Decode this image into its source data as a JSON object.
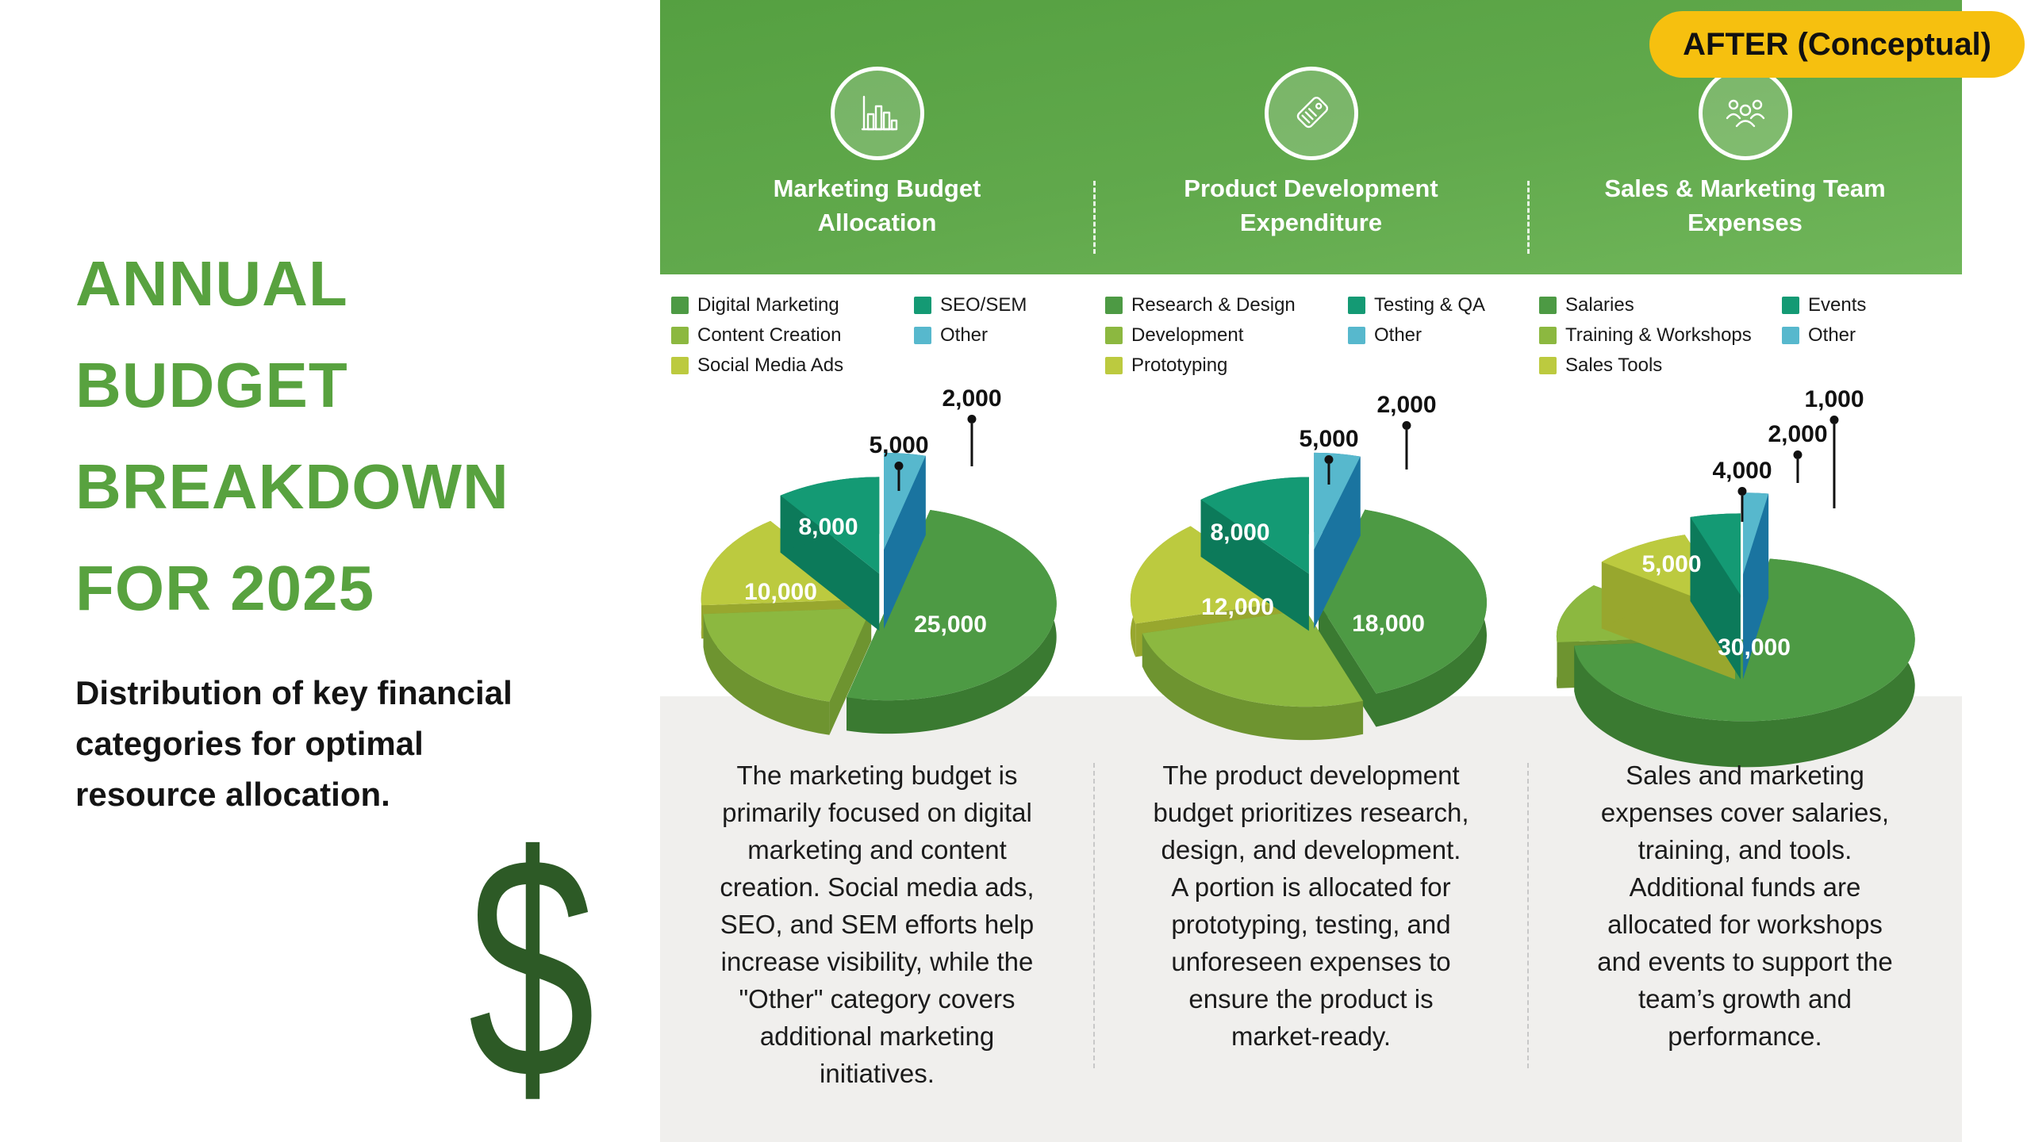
{
  "badge": {
    "label": "AFTER (Conceptual)",
    "bg_color": "#f6c00f"
  },
  "left": {
    "title": "ANNUAL\nBUDGET\nBREAKDOWN\nFOR 2025",
    "subtitle": "Distribution of key financial\ncategories for optimal\nresource allocation.",
    "dollar_symbol": "$",
    "title_color": "#58a23f",
    "dollar_color": "#2d5a26"
  },
  "palette": {
    "top": [
      "#4d9a44",
      "#8cb840",
      "#bcca3f",
      "#149a74",
      "#57b8cd"
    ],
    "side": [
      "#3a7a31",
      "#6e9430",
      "#98a72e",
      "#0c7a5a",
      "#1a74a0"
    ],
    "header_gradient": [
      "#55a041",
      "#70b65a"
    ],
    "content_bg": "#f0efed"
  },
  "charts": [
    {
      "header": {
        "title": "Marketing Budget\nAllocation",
        "icon": "bar-chart-icon"
      },
      "legend_left": [
        "Digital Marketing",
        "Content Creation",
        "Social Media Ads"
      ],
      "legend_right": [
        "SEO/SEM",
        "Other"
      ],
      "description": "The marketing budget is\nprimarily focused on digital\nmarketing and content\ncreation. Social media ads,\nSEO, and SEM efforts help\nincrease visibility, while the\n\"Other\" category covers\nadditional marketing\ninitiatives.",
      "chart_data": {
        "type": "pie",
        "title": "Marketing Budget Allocation",
        "categories": [
          "Digital Marketing",
          "Content Creation",
          "Social Media Ads",
          "SEO/SEM",
          "Other"
        ],
        "values": [
          25000,
          10000,
          8000,
          5000,
          2000
        ],
        "labels": [
          "25,000",
          "10,000",
          "8,000",
          "5,000",
          "2,000"
        ]
      }
    },
    {
      "header": {
        "title": "Product Development\nExpenditure",
        "icon": "price-tag-icon"
      },
      "legend_left": [
        "Research & Design",
        "Development",
        "Prototyping"
      ],
      "legend_right": [
        "Testing & QA",
        "Other"
      ],
      "description": "The product development\nbudget prioritizes research,\ndesign, and development.\nA portion is allocated for\nprototyping, testing, and\nunforeseen expenses to\nensure the product is\nmarket-ready.",
      "chart_data": {
        "type": "pie",
        "title": "Product Development Expenditure",
        "categories": [
          "Research & Design",
          "Development",
          "Prototyping",
          "Testing & QA",
          "Other"
        ],
        "values": [
          18000,
          12000,
          8000,
          5000,
          2000
        ],
        "labels": [
          "18,000",
          "12,000",
          "8,000",
          "5,000",
          "2,000"
        ]
      }
    },
    {
      "header": {
        "title": "Sales & Marketing Team\nExpenses",
        "icon": "team-icon"
      },
      "legend_left": [
        "Salaries",
        "Training & Workshops",
        "Sales Tools"
      ],
      "legend_right": [
        "Events",
        "Other"
      ],
      "description": "Sales and marketing\nexpenses cover salaries,\ntraining, and tools.\nAdditional funds are\nallocated for workshops\nand events to support the\nteam’s growth and\nperformance.",
      "chart_data": {
        "type": "pie",
        "title": "Sales & Marketing Team Expenses",
        "categories": [
          "Salaries",
          "Training & Workshops",
          "Sales Tools",
          "Events",
          "Other"
        ],
        "values": [
          30000,
          5000,
          4000,
          2000,
          1000
        ],
        "labels": [
          "30,000",
          "5,000",
          "4,000",
          "2,000",
          "1,000"
        ]
      }
    }
  ]
}
